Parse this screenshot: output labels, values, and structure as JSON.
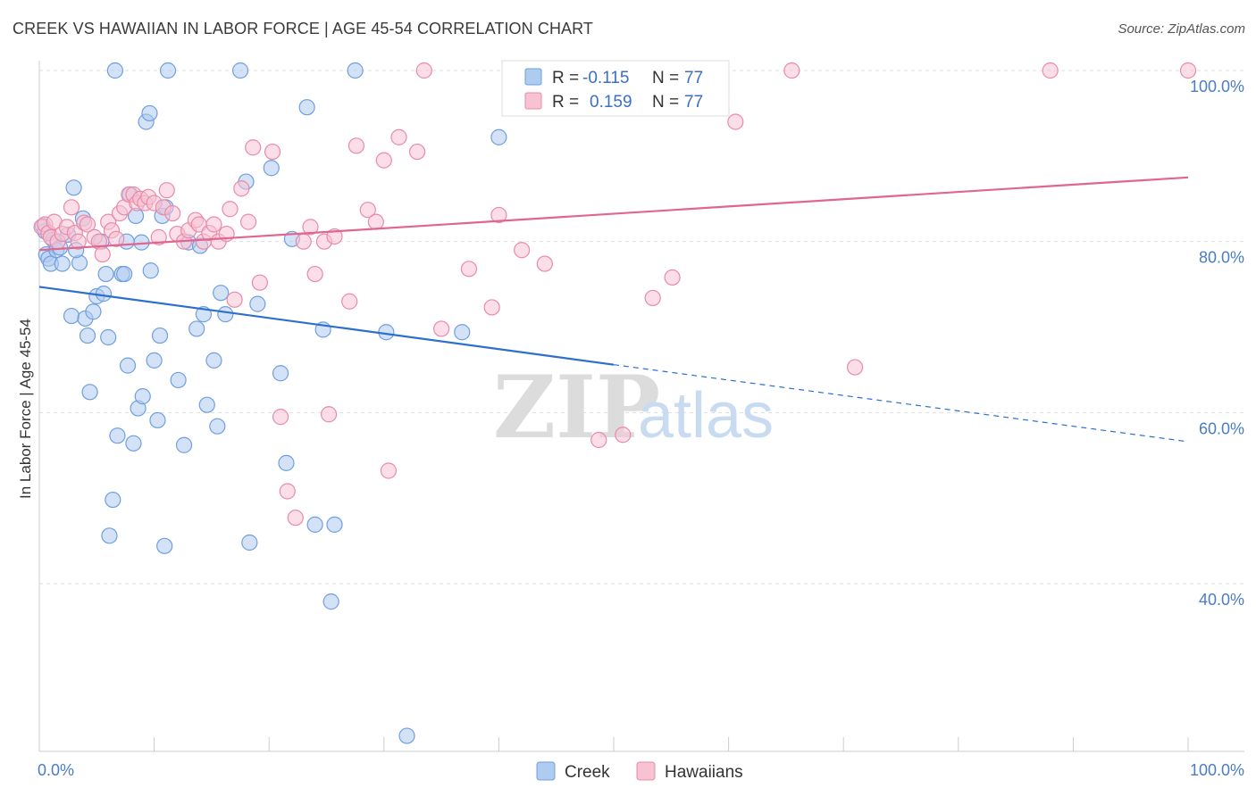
{
  "title": "CREEK VS HAWAIIAN IN LABOR FORCE | AGE 45-54 CORRELATION CHART",
  "source": "Source: ZipAtlas.com",
  "colors": {
    "creek_fill": "#aecbf0",
    "creek_stroke": "#6f9fde",
    "creek_line": "#2c6fcc",
    "hawaiian_fill": "#f7c3d3",
    "hawaiian_stroke": "#e98aa9",
    "hawaiian_line": "#e06690",
    "grid": "#dddddd",
    "tick_text": "#4a7cc7"
  },
  "legend": {
    "rows": [
      {
        "r_label": "R =",
        "r_value": "-0.115",
        "n_label": "N =",
        "n_value": "77"
      },
      {
        "r_label": "R =",
        "r_value": "0.159",
        "n_label": "N =",
        "n_value": "77"
      }
    ]
  },
  "bottom_legend": [
    "Creek",
    "Hawaiians"
  ],
  "watermark": {
    "zip": "ZIP",
    "atlas": "atlas"
  },
  "chart_data": {
    "type": "scatter",
    "title": "CREEK VS HAWAIIAN IN LABOR FORCE | AGE 45-54 CORRELATION CHART",
    "xlabel": "",
    "ylabel": "In Labor Force | Age 45-54",
    "xlim": [
      0,
      100
    ],
    "ylim": [
      21,
      102
    ],
    "x_ticks": [
      {
        "value": 0,
        "label": "0.0%"
      },
      {
        "value": 100,
        "label": "100.0%"
      }
    ],
    "y_ticks": [
      {
        "value": 40,
        "label": "40.0%"
      },
      {
        "value": 60,
        "label": "60.0%"
      },
      {
        "value": 80,
        "label": "80.0%"
      },
      {
        "value": 100,
        "label": "100.0%"
      }
    ],
    "grid": true,
    "series": [
      {
        "name": "Creek",
        "r": -0.115,
        "n": 77,
        "trend": {
          "x0": 0,
          "y0": 74.7,
          "x1": 50,
          "y1": 65.6,
          "dashed_to_x": 100,
          "dashed_to_y": 56.6
        },
        "points": [
          [
            0.3,
            81.8
          ],
          [
            0.5,
            81.2
          ],
          [
            0.6,
            78.5
          ],
          [
            0.8,
            78.0
          ],
          [
            1.0,
            77.4
          ],
          [
            1.2,
            80.2
          ],
          [
            1.5,
            79.0
          ],
          [
            1.8,
            79.3
          ],
          [
            2.0,
            77.4
          ],
          [
            2.5,
            80.8
          ],
          [
            3.0,
            86.3
          ],
          [
            3.5,
            77.5
          ],
          [
            3.8,
            82.7
          ],
          [
            2.8,
            71.3
          ],
          [
            4.0,
            71.0
          ],
          [
            4.2,
            69.0
          ],
          [
            4.4,
            62.4
          ],
          [
            4.7,
            71.8
          ],
          [
            5.0,
            73.6
          ],
          [
            5.4,
            80.0
          ],
          [
            5.6,
            73.9
          ],
          [
            5.8,
            76.2
          ],
          [
            6.0,
            68.8
          ],
          [
            6.4,
            49.8
          ],
          [
            6.1,
            45.6
          ],
          [
            6.6,
            100.0
          ],
          [
            6.8,
            57.3
          ],
          [
            7.2,
            76.2
          ],
          [
            7.4,
            76.2
          ],
          [
            7.6,
            80.0
          ],
          [
            7.7,
            65.5
          ],
          [
            7.9,
            85.5
          ],
          [
            8.2,
            56.4
          ],
          [
            8.4,
            83.0
          ],
          [
            8.6,
            60.5
          ],
          [
            8.9,
            79.9
          ],
          [
            9.0,
            61.9
          ],
          [
            9.3,
            94.0
          ],
          [
            9.6,
            95.0
          ],
          [
            9.7,
            76.6
          ],
          [
            10.0,
            66.1
          ],
          [
            10.3,
            59.1
          ],
          [
            10.5,
            69.0
          ],
          [
            10.7,
            83.0
          ],
          [
            10.9,
            44.4
          ],
          [
            11.2,
            100.0
          ],
          [
            12.1,
            63.8
          ],
          [
            12.6,
            56.2
          ],
          [
            13.0,
            79.9
          ],
          [
            13.7,
            69.8
          ],
          [
            14.3,
            71.5
          ],
          [
            14.6,
            60.9
          ],
          [
            15.2,
            66.1
          ],
          [
            15.5,
            58.4
          ],
          [
            15.8,
            74.0
          ],
          [
            16.2,
            71.5
          ],
          [
            17.5,
            100.0
          ],
          [
            18.0,
            87.0
          ],
          [
            18.3,
            44.8
          ],
          [
            19.0,
            72.7
          ],
          [
            20.2,
            88.6
          ],
          [
            21.0,
            64.6
          ],
          [
            21.5,
            54.1
          ],
          [
            23.3,
            95.7
          ],
          [
            24.0,
            46.9
          ],
          [
            25.4,
            37.9
          ],
          [
            25.7,
            46.9
          ],
          [
            24.7,
            69.7
          ],
          [
            27.5,
            100.0
          ],
          [
            30.2,
            69.4
          ],
          [
            32.0,
            22.2
          ],
          [
            36.8,
            69.4
          ],
          [
            40.0,
            92.2
          ],
          [
            11.0,
            84.0
          ],
          [
            3.2,
            79.0
          ],
          [
            14.0,
            79.5
          ],
          [
            22.0,
            80.3
          ]
        ]
      },
      {
        "name": "Hawaiians",
        "r": 0.159,
        "n": 77,
        "trend": {
          "x0": 0,
          "y0": 79.0,
          "x1": 100,
          "y1": 87.5
        },
        "points": [
          [
            0.2,
            81.7
          ],
          [
            0.5,
            82.0
          ],
          [
            0.8,
            81.0
          ],
          [
            1.0,
            80.5
          ],
          [
            1.3,
            82.3
          ],
          [
            1.6,
            80.0
          ],
          [
            2.0,
            80.9
          ],
          [
            2.4,
            81.7
          ],
          [
            2.8,
            84.0
          ],
          [
            3.1,
            81.0
          ],
          [
            3.4,
            80.0
          ],
          [
            3.9,
            82.2
          ],
          [
            4.2,
            82.0
          ],
          [
            4.8,
            80.5
          ],
          [
            5.2,
            80.0
          ],
          [
            5.5,
            78.5
          ],
          [
            6.0,
            82.3
          ],
          [
            6.3,
            81.3
          ],
          [
            6.7,
            80.3
          ],
          [
            7.0,
            83.3
          ],
          [
            7.4,
            84.0
          ],
          [
            7.8,
            85.5
          ],
          [
            8.2,
            85.5
          ],
          [
            8.5,
            84.5
          ],
          [
            8.8,
            85.0
          ],
          [
            9.2,
            84.5
          ],
          [
            9.5,
            85.2
          ],
          [
            10.0,
            84.5
          ],
          [
            10.4,
            80.5
          ],
          [
            10.8,
            84.0
          ],
          [
            11.1,
            86.0
          ],
          [
            11.6,
            83.3
          ],
          [
            12.0,
            80.9
          ],
          [
            12.6,
            80.0
          ],
          [
            13.0,
            81.3
          ],
          [
            13.6,
            82.5
          ],
          [
            13.9,
            82.0
          ],
          [
            14.3,
            80.0
          ],
          [
            14.8,
            81.0
          ],
          [
            15.2,
            82.0
          ],
          [
            15.6,
            80.0
          ],
          [
            16.3,
            80.9
          ],
          [
            16.6,
            83.8
          ],
          [
            17.0,
            73.2
          ],
          [
            17.6,
            86.2
          ],
          [
            18.2,
            82.3
          ],
          [
            18.6,
            91.0
          ],
          [
            19.2,
            75.2
          ],
          [
            20.3,
            90.5
          ],
          [
            21.0,
            59.5
          ],
          [
            21.6,
            50.8
          ],
          [
            22.3,
            47.7
          ],
          [
            23.0,
            80.0
          ],
          [
            23.6,
            81.7
          ],
          [
            24.0,
            76.2
          ],
          [
            24.8,
            80.0
          ],
          [
            25.2,
            59.8
          ],
          [
            25.7,
            80.6
          ],
          [
            27.0,
            73.0
          ],
          [
            27.6,
            91.2
          ],
          [
            28.6,
            83.7
          ],
          [
            29.3,
            82.3
          ],
          [
            30.0,
            89.5
          ],
          [
            30.4,
            53.2
          ],
          [
            31.3,
            92.2
          ],
          [
            32.9,
            90.5
          ],
          [
            33.5,
            100.0
          ],
          [
            35.0,
            69.8
          ],
          [
            37.4,
            76.8
          ],
          [
            39.4,
            72.3
          ],
          [
            40.0,
            83.1
          ],
          [
            42.0,
            79.0
          ],
          [
            44.0,
            77.4
          ],
          [
            48.7,
            56.8
          ],
          [
            50.8,
            57.4
          ],
          [
            53.4,
            73.4
          ],
          [
            55.1,
            75.8
          ]
        ]
      }
    ],
    "extra_points": {
      "Hawaiians": [
        [
          44.0,
          100.0
        ],
        [
          47.4,
          97.2
        ],
        [
          60.6,
          94.0
        ],
        [
          65.5,
          100.0
        ],
        [
          71.0,
          65.3
        ],
        [
          88.0,
          100.0
        ],
        [
          100.0,
          100.0
        ]
      ]
    }
  }
}
